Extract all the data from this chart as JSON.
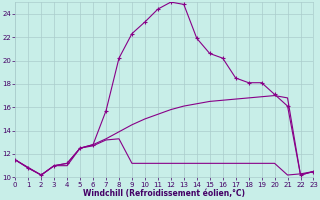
{
  "xlabel": "Windchill (Refroidissement éolien,°C)",
  "bg_color": "#c8eee8",
  "grid_color": "#aacccc",
  "line_color": "#880088",
  "xlim": [
    0,
    23
  ],
  "ylim": [
    10,
    25
  ],
  "yticks": [
    10,
    12,
    14,
    16,
    18,
    20,
    22,
    24
  ],
  "xticks": [
    0,
    1,
    2,
    3,
    4,
    5,
    6,
    7,
    8,
    9,
    10,
    11,
    12,
    13,
    14,
    15,
    16,
    17,
    18,
    19,
    20,
    21,
    22,
    23
  ],
  "curve_main_x": [
    0,
    1,
    2,
    3,
    4,
    5,
    6,
    7,
    8,
    9,
    10,
    11,
    12,
    13,
    14,
    15,
    16,
    17,
    18,
    19,
    20,
    21,
    22,
    23
  ],
  "curve_main_y": [
    11.5,
    10.8,
    10.2,
    11.0,
    11.2,
    12.5,
    12.8,
    15.7,
    20.2,
    22.3,
    23.3,
    24.4,
    25.0,
    24.8,
    21.9,
    20.6,
    20.2,
    18.5,
    18.1,
    18.1,
    17.1,
    16.1,
    10.2,
    10.5
  ],
  "curve_diag_x": [
    0,
    2,
    3,
    4,
    5,
    6,
    7,
    8,
    9,
    10,
    11,
    12,
    13,
    14,
    15,
    16,
    17,
    18,
    19,
    20,
    21,
    22,
    23
  ],
  "curve_diag_y": [
    11.5,
    10.2,
    11.0,
    11.2,
    12.5,
    12.8,
    13.3,
    13.9,
    14.5,
    15.0,
    15.4,
    15.8,
    16.1,
    16.3,
    16.5,
    16.6,
    16.7,
    16.8,
    16.9,
    17.0,
    16.8,
    10.2,
    10.5
  ],
  "curve_flat_x": [
    0,
    1,
    2,
    3,
    4,
    5,
    6,
    7,
    8,
    9,
    10,
    11,
    12,
    13,
    14,
    15,
    16,
    17,
    18,
    19,
    20,
    21,
    22,
    23
  ],
  "curve_flat_y": [
    11.5,
    10.8,
    10.2,
    11.0,
    11.0,
    12.5,
    12.7,
    13.2,
    13.3,
    11.2,
    11.2,
    11.2,
    11.2,
    11.2,
    11.2,
    11.2,
    11.2,
    11.2,
    11.2,
    11.2,
    11.2,
    10.2,
    10.3,
    10.5
  ],
  "tick_fontsize": 5,
  "xlabel_fontsize": 5.5,
  "tick_color": "#440066",
  "xlabel_color": "#440066"
}
